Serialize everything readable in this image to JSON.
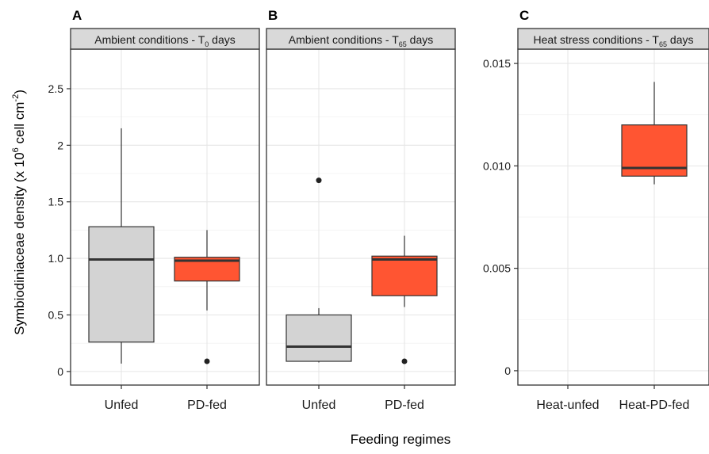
{
  "figure": {
    "ylabel_main": "Symbiodiniaceae density (x 10",
    "ylabel_sup1": "6",
    "ylabel_mid": " cell cm",
    "ylabel_sup2": "-2",
    "ylabel_end": ")",
    "xlabel": "Feeding regimes"
  },
  "chart_data": [
    {
      "type": "box",
      "panel_letter": "A",
      "strip_title": "Ambient conditions - T",
      "strip_sub": "0",
      "strip_suffix": " days",
      "categories": [
        "Unfed",
        "PD-fed"
      ],
      "ylim": [
        -0.12,
        2.85
      ],
      "yticks": [
        0,
        0.5,
        1.0,
        1.5,
        2,
        2.5
      ],
      "ytick_labels": [
        "0",
        "0.5",
        "1.0",
        "1.5",
        "2",
        "2.5"
      ],
      "boxes": [
        {
          "category": "Unfed",
          "min": 0.07,
          "q1": 0.26,
          "median": 0.99,
          "q3": 1.28,
          "max": 2.15,
          "outliers": [],
          "color": "#d3d3d3"
        },
        {
          "category": "PD-fed",
          "min": 0.54,
          "q1": 0.8,
          "median": 0.98,
          "q3": 1.01,
          "max": 1.25,
          "outliers": [
            0.09
          ],
          "color": "#ff5532"
        }
      ]
    },
    {
      "type": "box",
      "panel_letter": "B",
      "strip_title": "Ambient conditions - T",
      "strip_sub": "65",
      "strip_suffix": " days",
      "categories": [
        "Unfed",
        "PD-fed"
      ],
      "ylim": [
        -0.12,
        2.85
      ],
      "yticks": [
        0,
        0.5,
        1.0,
        1.5,
        2,
        2.5
      ],
      "ytick_labels": [],
      "boxes": [
        {
          "category": "Unfed",
          "min": 0.08,
          "q1": 0.09,
          "median": 0.22,
          "q3": 0.5,
          "max": 0.56,
          "outliers": [
            1.69
          ],
          "color": "#d3d3d3"
        },
        {
          "category": "PD-fed",
          "min": 0.57,
          "q1": 0.67,
          "median": 0.99,
          "q3": 1.02,
          "max": 1.2,
          "outliers": [
            0.09
          ],
          "color": "#ff5532"
        }
      ]
    },
    {
      "type": "box",
      "panel_letter": "C",
      "strip_title": "Heat stress conditions - T",
      "strip_sub": "65",
      "strip_suffix": " days",
      "categories": [
        "Heat-unfed",
        "Heat-PD-fed"
      ],
      "ylim": [
        -0.0007,
        0.0157
      ],
      "yticks": [
        0,
        0.005,
        0.01,
        0.015
      ],
      "ytick_labels": [
        "0",
        "0.005",
        "0.010",
        "0.015"
      ],
      "boxes": [
        {
          "category": "Heat-PD-fed",
          "min": 0.0091,
          "q1": 0.0095,
          "median": 0.0099,
          "q3": 0.012,
          "max": 0.0141,
          "outliers": [],
          "color": "#ff5532"
        }
      ]
    }
  ]
}
